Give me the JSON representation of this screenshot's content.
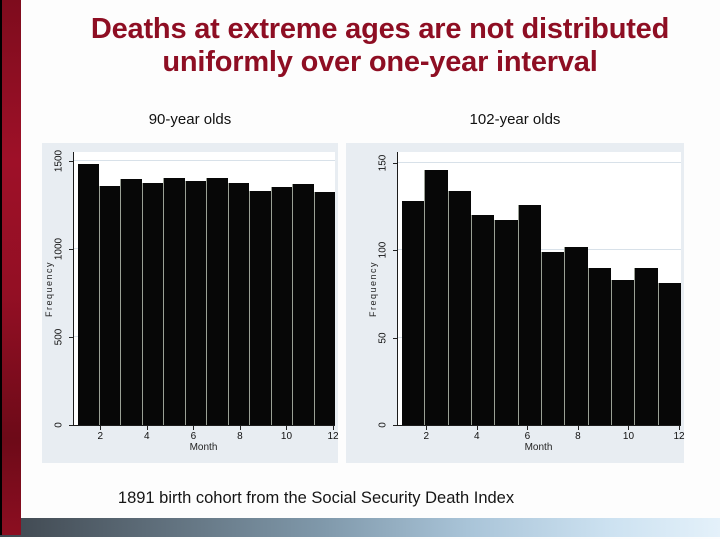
{
  "slide": {
    "title": "Deaths at extreme ages are not distributed\nuniformly over one-year interval",
    "title_color": "#8e0e23",
    "caption": "1891 birth cohort from the Social Security Death Index",
    "accent_color": "#9e1028",
    "footer_gradient_colors": [
      "#3e464e",
      "#8099ab",
      "#cde2f1"
    ]
  },
  "chart_data": [
    {
      "type": "bar",
      "title": "90-year olds",
      "xlabel": "Month",
      "ylabel": "Frequency",
      "categories": [
        1,
        2,
        3,
        4,
        5,
        6,
        7,
        8,
        9,
        10,
        11,
        12
      ],
      "values": [
        1480,
        1355,
        1395,
        1375,
        1405,
        1385,
        1400,
        1375,
        1330,
        1350,
        1370,
        1325
      ],
      "yticks": [
        0,
        500,
        1000,
        1500
      ],
      "ylim": [
        0,
        1550
      ],
      "xticks": [
        2,
        4,
        6,
        8,
        10,
        12
      ],
      "grid": true,
      "legend": "none",
      "bar_color": "#070707"
    },
    {
      "type": "bar",
      "title": "102-year olds",
      "xlabel": "Month",
      "ylabel": "Frequency",
      "categories": [
        1,
        2,
        3,
        4,
        5,
        6,
        7,
        8,
        9,
        10,
        11,
        12
      ],
      "values": [
        128,
        146,
        134,
        120,
        117,
        126,
        99,
        102,
        90,
        83,
        90,
        81
      ],
      "yticks": [
        0,
        50,
        100,
        150
      ],
      "ylim": [
        0,
        156
      ],
      "xticks": [
        2,
        4,
        6,
        8,
        10,
        12
      ],
      "grid": true,
      "legend": "none",
      "bar_color": "#070707"
    }
  ]
}
